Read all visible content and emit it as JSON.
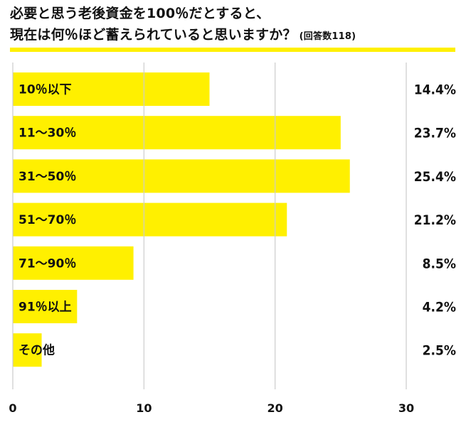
{
  "title": {
    "line1": "必要と思う老後資金を100％だとすると、",
    "line2": "現在は何％ほど蓄えられていると思いますか？",
    "note": "(回答数118)"
  },
  "colors": {
    "bar": "#fff000",
    "rule": "#fff000",
    "grid": "#cccccc",
    "text": "#111111"
  },
  "chart_data": {
    "type": "bar",
    "orientation": "horizontal",
    "categories": [
      "10％以下",
      "11〜30％",
      "31〜50％",
      "51〜70％",
      "71〜90％",
      "91％以上",
      "その他"
    ],
    "values": [
      14.4,
      23.7,
      25.4,
      21.2,
      8.5,
      4.2,
      2.5
    ],
    "value_labels": [
      "14.4%",
      "23.7%",
      "25.4%",
      "21.2%",
      "8.5%",
      "4.2%",
      "2.5%"
    ],
    "bar_extents": [
      15.0,
      25.0,
      25.7,
      20.9,
      9.2,
      4.9,
      2.2
    ],
    "xlim": [
      0,
      30
    ],
    "x_ticks": [
      0,
      10,
      20,
      30
    ],
    "x_tick_labels": [
      "0",
      "10",
      "20",
      "30"
    ],
    "grid": true
  }
}
